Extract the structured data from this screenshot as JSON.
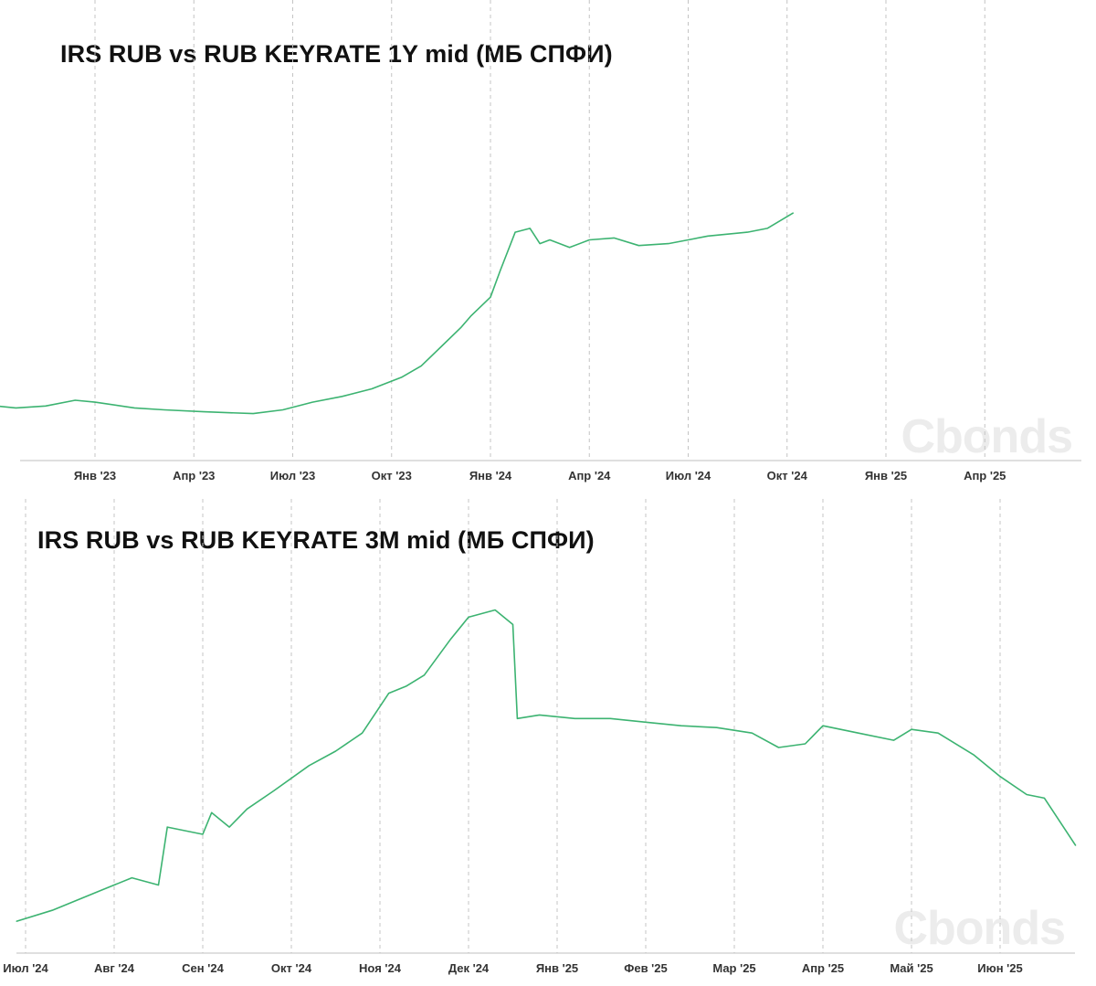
{
  "theme": {
    "line_color": "#3cb371",
    "grid_color": "#c4c4c4",
    "text_color": "#111111"
  },
  "watermark": "Cbonds",
  "chart_data": [
    {
      "type": "line",
      "title": "IRS RUB vs RUB KEYRATE 1Y mid (МБ СПФИ)",
      "xlabel": "",
      "ylabel": "",
      "x_ticks": [
        "Янв '23",
        "Апр '23",
        "Июл '23",
        "Окт '23",
        "Янв '24",
        "Апр '24",
        "Июл '24",
        "Окт '24",
        "Янв '25",
        "Апр '25"
      ],
      "x_range": [
        -3.75,
        7.06
      ],
      "y_range": [
        0,
        100
      ],
      "y_axis_visible": false,
      "grid": "vertical-dashed",
      "series": [
        {
          "points": [
            [
              -3.75,
              5
            ],
            [
              -3.5,
              5.5
            ],
            [
              -3.2,
              6.5
            ],
            [
              -2.8,
              7.5
            ],
            [
              -2.3,
              8.5
            ],
            [
              -1.7,
              9.5
            ],
            [
              -1.2,
              10
            ],
            [
              -0.8,
              9
            ],
            [
              -0.5,
              9.5
            ],
            [
              -0.2,
              11
            ],
            [
              0,
              10.5
            ],
            [
              0.4,
              9
            ],
            [
              0.7,
              8.5
            ],
            [
              1.1,
              8
            ],
            [
              1.6,
              7.5
            ],
            [
              1.9,
              8.5
            ],
            [
              2.2,
              10.5
            ],
            [
              2.5,
              12
            ],
            [
              2.8,
              14
            ],
            [
              3.1,
              17
            ],
            [
              3.3,
              20
            ],
            [
              3.5,
              25
            ],
            [
              3.7,
              30
            ],
            [
              3.8,
              33
            ],
            [
              4.0,
              38
            ],
            [
              4.1,
              45
            ],
            [
              4.25,
              55
            ],
            [
              4.4,
              56
            ],
            [
              4.5,
              52
            ],
            [
              4.6,
              53
            ],
            [
              4.8,
              51
            ],
            [
              5.0,
              53
            ],
            [
              5.25,
              53.5
            ],
            [
              5.5,
              51.5
            ],
            [
              5.8,
              52
            ],
            [
              6.0,
              53
            ],
            [
              6.2,
              54
            ],
            [
              6.4,
              54.5
            ],
            [
              6.6,
              55
            ],
            [
              6.8,
              56
            ],
            [
              7.06,
              60
            ]
          ]
        }
      ]
    },
    {
      "type": "line",
      "title": "IRS RUB vs RUB KEYRATE 3M mid (МБ СПФИ)",
      "xlabel": "",
      "ylabel": "",
      "x_ticks": [
        "Июл '24",
        "Авг '24",
        "Сен '24",
        "Окт '24",
        "Ноя '24",
        "Дек '24",
        "Янв '25",
        "Фев '25",
        "Мар '25",
        "Апр '25",
        "Май '25",
        "Июн '25"
      ],
      "x_range": [
        -0.1,
        11.85
      ],
      "y_range": [
        0,
        100
      ],
      "y_axis_visible": false,
      "grid": "vertical-dashed",
      "series": [
        {
          "points": [
            [
              -0.1,
              2
            ],
            [
              0.3,
              5
            ],
            [
              0.8,
              10
            ],
            [
              1.2,
              14
            ],
            [
              1.5,
              12
            ],
            [
              1.6,
              28
            ],
            [
              2.0,
              26
            ],
            [
              2.1,
              32
            ],
            [
              2.3,
              28
            ],
            [
              2.5,
              33
            ],
            [
              2.8,
              38
            ],
            [
              3.2,
              45
            ],
            [
              3.5,
              49
            ],
            [
              3.8,
              54
            ],
            [
              4.1,
              65
            ],
            [
              4.3,
              67
            ],
            [
              4.5,
              70
            ],
            [
              4.8,
              80
            ],
            [
              5.0,
              86
            ],
            [
              5.3,
              88
            ],
            [
              5.5,
              84
            ],
            [
              5.55,
              58
            ],
            [
              5.8,
              59
            ],
            [
              6.2,
              58
            ],
            [
              6.6,
              58
            ],
            [
              7.0,
              57
            ],
            [
              7.4,
              56
            ],
            [
              7.8,
              55.5
            ],
            [
              8.2,
              54
            ],
            [
              8.5,
              50
            ],
            [
              8.8,
              51
            ],
            [
              9.0,
              56
            ],
            [
              9.4,
              54
            ],
            [
              9.8,
              52
            ],
            [
              10.0,
              55
            ],
            [
              10.3,
              54
            ],
            [
              10.7,
              48
            ],
            [
              11.0,
              42
            ],
            [
              11.3,
              37
            ],
            [
              11.5,
              36
            ],
            [
              11.85,
              23
            ]
          ]
        }
      ]
    }
  ]
}
